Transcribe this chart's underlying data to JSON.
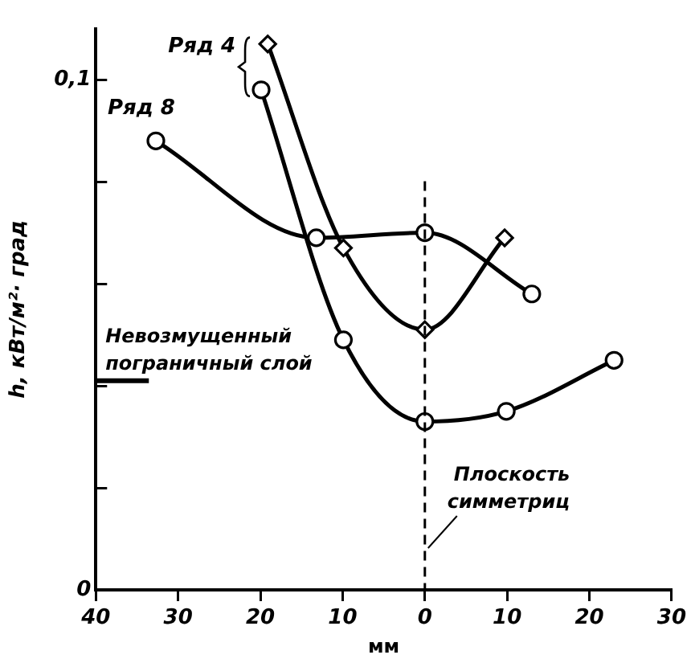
{
  "chart_data": {
    "type": "line",
    "xlabel": "мм",
    "ylabel": "h, кВт/м²· град",
    "xlim": [
      -40,
      30
    ],
    "xticks": [
      {
        "value": -40,
        "label": "40"
      },
      {
        "value": -30,
        "label": "30"
      },
      {
        "value": -20,
        "label": "20"
      },
      {
        "value": -10,
        "label": "10"
      },
      0,
      {
        "value": 10,
        "label": "10"
      },
      {
        "value": 20,
        "label": "20"
      },
      {
        "value": 30,
        "label": "30"
      }
    ],
    "ylim": [
      0,
      0.11
    ],
    "yticks": [
      0,
      {
        "value": 0.02,
        "label": null
      },
      {
        "value": 0.04,
        "label": null
      },
      {
        "value": 0.06,
        "label": null
      },
      {
        "value": 0.08,
        "label": null
      },
      {
        "value": 0.1,
        "label": "0,1"
      }
    ],
    "grid": false,
    "legend": false,
    "series": [
      {
        "name": "Ряд 4",
        "color": "#000000",
        "marker": "diamond",
        "x": [
          -19.1,
          -9.9,
          0,
          9.7
        ],
        "values": [
          0.107,
          0.067,
          0.051,
          0.069
        ]
      },
      {
        "color": "#000000",
        "marker": "circle",
        "x": [
          -19.9,
          -9.9,
          0,
          9.9,
          23
        ],
        "values": [
          0.098,
          0.049,
          0.033,
          0.035,
          0.045
        ]
      },
      {
        "name": "Ряд 8",
        "color": "#000000",
        "marker": "circle",
        "x": [
          -32.7,
          -13.2,
          0,
          13
        ],
        "values": [
          0.088,
          0.069,
          0.07,
          0.058
        ]
      }
    ],
    "ref_lines": [
      {
        "axis": "y",
        "value": 0.041,
        "label": "Невозмущенный пограничный слой",
        "line_style": "solid"
      },
      {
        "axis": "x",
        "value": 0,
        "label": "Плоскость симметриц",
        "line_style": "dashed"
      }
    ]
  }
}
